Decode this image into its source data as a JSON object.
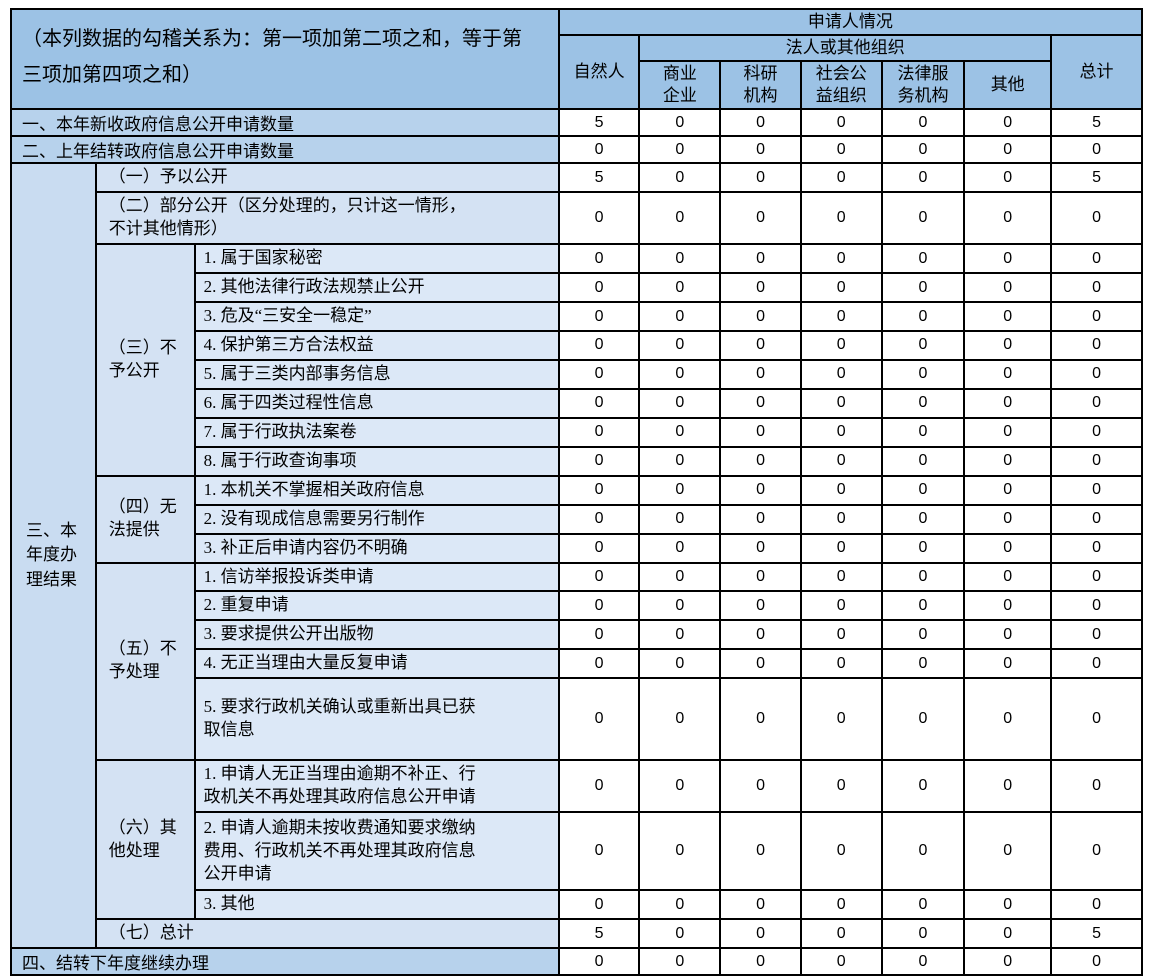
{
  "table": {
    "note": "（本列数据的勾稽关系为：第一项加第二项之和，等于第\n三项加第四项之和）",
    "header": {
      "applicant": "申请人情况",
      "natural_person": "自然人",
      "legal_org": "法人或其他组织",
      "legal_cols": [
        "商业\n企业",
        "科研\n机构",
        "社会公\n益组织",
        "法律服\n务机构",
        "其他"
      ],
      "total": "总计"
    },
    "body": {
      "row1": {
        "label": "一、本年新收政府信息公开申请数量",
        "values": [
          5,
          0,
          0,
          0,
          0,
          0,
          5
        ]
      },
      "row2": {
        "label": "二、上年结转政府信息公开申请数量",
        "values": [
          0,
          0,
          0,
          0,
          0,
          0,
          0
        ]
      },
      "section3": {
        "label": "三、本\n年度办\n理结果",
        "sub1": {
          "label": "（一）予以公开",
          "values": [
            5,
            0,
            0,
            0,
            0,
            0,
            5
          ]
        },
        "sub2": {
          "label": "（二）部分公开（区分处理的，只计这一情形，\n不计其他情形）",
          "values": [
            0,
            0,
            0,
            0,
            0,
            0,
            0
          ]
        },
        "sub3": {
          "label": "（三）不\n予公开",
          "items": [
            {
              "label": "1. 属于国家秘密",
              "values": [
                0,
                0,
                0,
                0,
                0,
                0,
                0
              ]
            },
            {
              "label": "2. 其他法律行政法规禁止公开",
              "values": [
                0,
                0,
                0,
                0,
                0,
                0,
                0
              ]
            },
            {
              "label": "3. 危及“三安全一稳定”",
              "values": [
                0,
                0,
                0,
                0,
                0,
                0,
                0
              ]
            },
            {
              "label": "4. 保护第三方合法权益",
              "values": [
                0,
                0,
                0,
                0,
                0,
                0,
                0
              ]
            },
            {
              "label": "5. 属于三类内部事务信息",
              "values": [
                0,
                0,
                0,
                0,
                0,
                0,
                0
              ]
            },
            {
              "label": "6. 属于四类过程性信息",
              "values": [
                0,
                0,
                0,
                0,
                0,
                0,
                0
              ]
            },
            {
              "label": "7. 属于行政执法案卷",
              "values": [
                0,
                0,
                0,
                0,
                0,
                0,
                0
              ]
            },
            {
              "label": "8. 属于行政查询事项",
              "values": [
                0,
                0,
                0,
                0,
                0,
                0,
                0
              ]
            }
          ]
        },
        "sub4": {
          "label": "（四）无\n法提供",
          "items": [
            {
              "label": "1. 本机关不掌握相关政府信息",
              "values": [
                0,
                0,
                0,
                0,
                0,
                0,
                0
              ]
            },
            {
              "label": "2. 没有现成信息需要另行制作",
              "values": [
                0,
                0,
                0,
                0,
                0,
                0,
                0
              ]
            },
            {
              "label": "3. 补正后申请内容仍不明确",
              "values": [
                0,
                0,
                0,
                0,
                0,
                0,
                0
              ]
            }
          ]
        },
        "sub5": {
          "label": "（五）不\n予处理",
          "items": [
            {
              "label": "1. 信访举报投诉类申请",
              "values": [
                0,
                0,
                0,
                0,
                0,
                0,
                0
              ]
            },
            {
              "label": "2. 重复申请",
              "values": [
                0,
                0,
                0,
                0,
                0,
                0,
                0
              ]
            },
            {
              "label": "3. 要求提供公开出版物",
              "values": [
                0,
                0,
                0,
                0,
                0,
                0,
                0
              ]
            },
            {
              "label": "4. 无正当理由大量反复申请",
              "values": [
                0,
                0,
                0,
                0,
                0,
                0,
                0
              ]
            },
            {
              "label": "5. 要求行政机关确认或重新出具已获\n取信息",
              "values": [
                0,
                0,
                0,
                0,
                0,
                0,
                0
              ]
            }
          ]
        },
        "sub6": {
          "label": "（六）其\n他处理",
          "items": [
            {
              "label": "1. 申请人无正当理由逾期不补正、行\n政机关不再处理其政府信息公开申请",
              "values": [
                0,
                0,
                0,
                0,
                0,
                0,
                0
              ]
            },
            {
              "label": "2. 申请人逾期未按收费通知要求缴纳\n费用、行政机关不再处理其政府信息\n公开申请",
              "values": [
                0,
                0,
                0,
                0,
                0,
                0,
                0
              ]
            },
            {
              "label": "3. 其他",
              "values": [
                0,
                0,
                0,
                0,
                0,
                0,
                0
              ]
            }
          ]
        },
        "sub7": {
          "label": "（七）总计",
          "values": [
            5,
            0,
            0,
            0,
            0,
            0,
            5
          ]
        }
      },
      "row4": {
        "label": "四、结转下年度继续办理",
        "values": [
          0,
          0,
          0,
          0,
          0,
          0,
          0
        ]
      }
    }
  }
}
